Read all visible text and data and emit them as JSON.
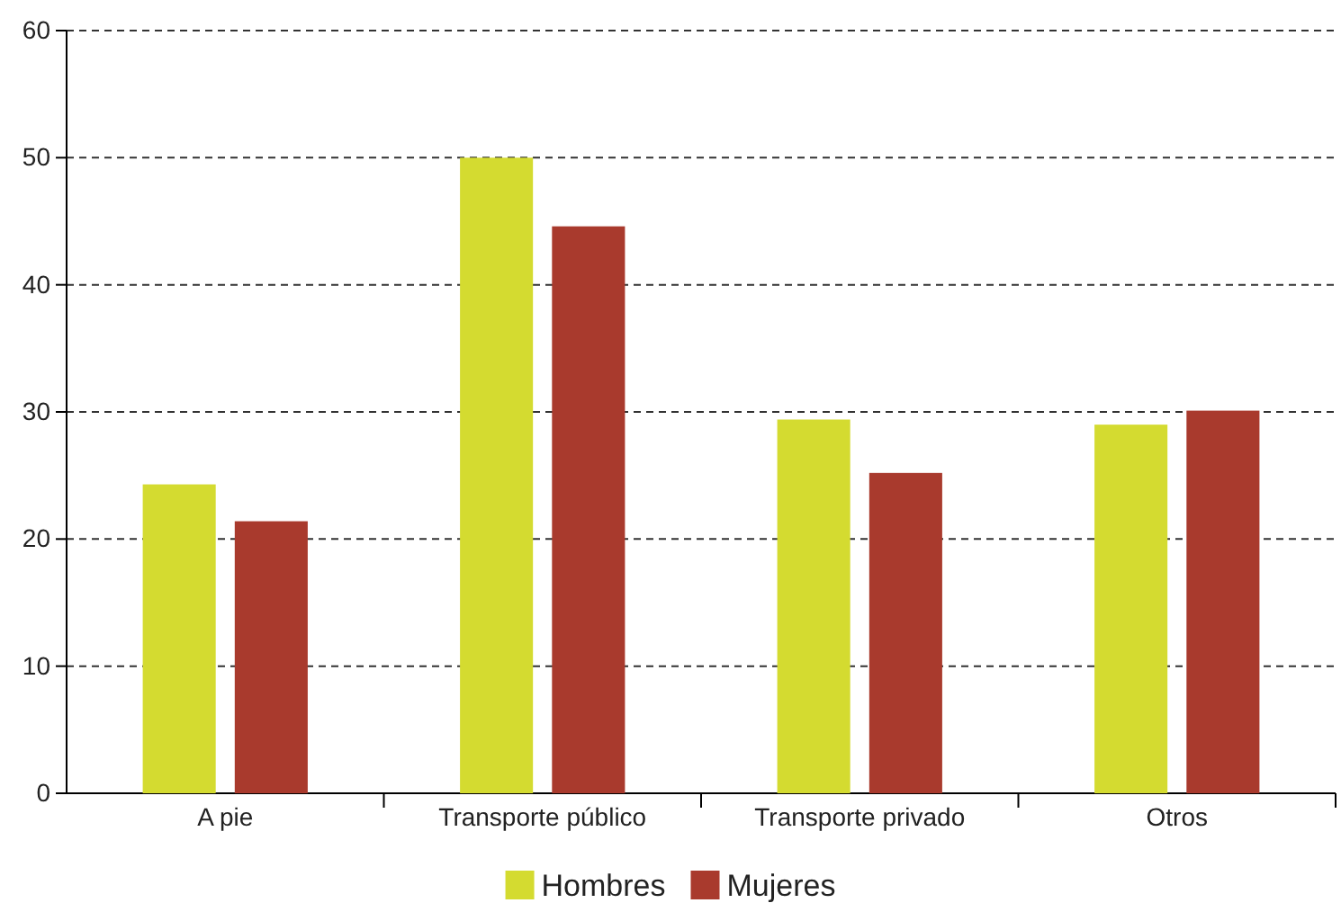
{
  "chart_data": {
    "type": "bar",
    "categories": [
      "A pie",
      "Transporte público",
      "Transporte privado",
      "Otros"
    ],
    "series": [
      {
        "name": "Hombres",
        "color": "#d4db30",
        "values": [
          24.3,
          50.0,
          29.4,
          29.0
        ]
      },
      {
        "name": "Mujeres",
        "color": "#a93a2d",
        "values": [
          21.4,
          44.6,
          25.2,
          30.1
        ]
      }
    ],
    "ylim": [
      0,
      60
    ],
    "yticks": [
      0,
      10,
      20,
      30,
      40,
      50,
      60
    ],
    "grid": "y",
    "legend": "bottom"
  }
}
